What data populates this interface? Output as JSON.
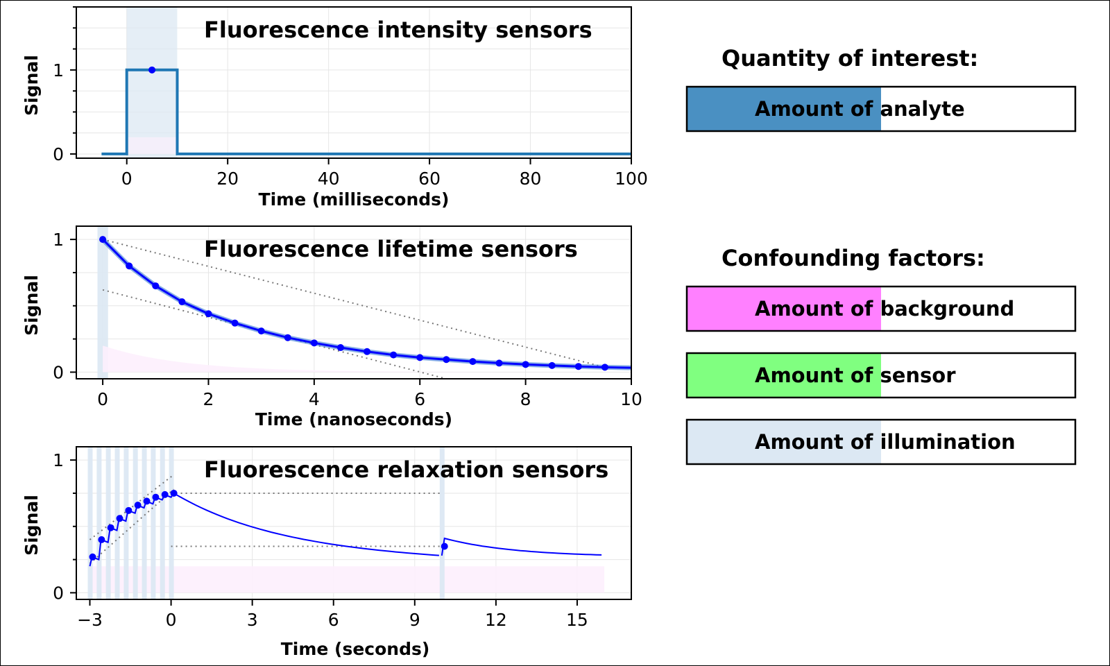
{
  "chart_data": [
    {
      "type": "line",
      "title": "Fluorescence intensity sensors",
      "xlabel": "Time (milliseconds)",
      "ylabel": "Signal",
      "xlim": [
        -10,
        100
      ],
      "ylim": [
        -0.05,
        1.75
      ],
      "xticks": [
        0,
        20,
        40,
        60,
        80,
        100
      ],
      "xtick_labels": [
        "0",
        "20",
        "40",
        "60",
        "80",
        "100"
      ],
      "yticks": [
        0,
        1
      ],
      "ytick_labels": [
        "0",
        "1"
      ],
      "grid": true,
      "illumination_window": [
        0,
        10
      ],
      "series": [
        {
          "x": [
            -5,
            0,
            0,
            10,
            10,
            100
          ],
          "y": [
            0,
            0,
            1,
            1,
            0,
            0
          ],
          "color": "#1f77b4"
        }
      ],
      "points": [
        {
          "x": 5,
          "y": 1
        }
      ]
    },
    {
      "type": "line",
      "title": "Fluorescence lifetime sensors",
      "xlabel": "Time (nanoseconds)",
      "ylabel": "Signal",
      "xlim": [
        -0.5,
        10
      ],
      "ylim": [
        -0.05,
        1.1
      ],
      "xticks": [
        0,
        2,
        4,
        6,
        8,
        10
      ],
      "xtick_labels": [
        "0",
        "2",
        "4",
        "6",
        "8",
        "10"
      ],
      "yticks": [
        0,
        1
      ],
      "ytick_labels": [
        "0",
        "1"
      ],
      "grid": true,
      "illumination_window": [
        -0.1,
        0.1
      ],
      "decay_x": [
        0,
        0.5,
        1,
        1.5,
        2,
        2.5,
        3,
        3.5,
        4,
        4.5,
        5,
        5.5,
        6,
        6.5,
        7,
        7.5,
        8,
        8.5,
        9,
        9.5
      ],
      "decay_y": [
        1.0,
        0.8,
        0.65,
        0.53,
        0.44,
        0.37,
        0.31,
        0.26,
        0.22,
        0.185,
        0.155,
        0.13,
        0.11,
        0.095,
        0.08,
        0.068,
        0.058,
        0.05,
        0.043,
        0.037
      ],
      "tangent_lines": [
        {
          "x": [
            0,
            9.5
          ],
          "y": [
            1.0,
            0.037
          ]
        },
        {
          "x": [
            0,
            6.5
          ],
          "y": [
            0.62,
            -0.05
          ]
        }
      ]
    },
    {
      "type": "line",
      "title": "Fluorescence relaxation sensors",
      "xlabel": "Time (seconds)",
      "ylabel": "Signal",
      "xlim": [
        -3.5,
        17
      ],
      "ylim": [
        -0.05,
        1.1
      ],
      "xticks": [
        -3,
        0,
        3,
        6,
        9,
        12,
        15
      ],
      "xtick_labels": [
        "−3",
        "0",
        "3",
        "6",
        "9",
        "12",
        "15"
      ],
      "yticks": [
        0,
        1
      ],
      "ytick_labels": [
        "0",
        "1"
      ],
      "grid": true,
      "pulse_times": [
        -3,
        -2.67,
        -2.33,
        -2,
        -1.67,
        -1.33,
        -1,
        -0.67,
        -0.33,
        0,
        10
      ],
      "rise_points_x": [
        -3,
        -2.67,
        -2.33,
        -2,
        -1.67,
        -1.33,
        -1,
        -0.67,
        -0.33,
        0
      ],
      "rise_points_y": [
        0.27,
        0.4,
        0.49,
        0.56,
        0.62,
        0.66,
        0.69,
        0.72,
        0.74,
        0.75
      ],
      "second_point": {
        "x": 10.1,
        "y": 0.35
      },
      "decay_end_values": {
        "first_decay_end": [
          10,
          0.28
        ],
        "second_decay_end": [
          16,
          0.27
        ]
      },
      "reference_levels": [
        {
          "x": [
            0,
            10
          ],
          "y": 0.75
        },
        {
          "x": [
            0,
            10
          ],
          "y": 0.35
        }
      ],
      "background_level": 0.2
    }
  ],
  "legend": {
    "quantity_heading": "Quantity of interest:",
    "confounding_heading": "Confounding factors:",
    "items": [
      {
        "label": "Amount of analyte",
        "color": "#4a90c2",
        "fraction": 0.5
      },
      {
        "label": "Amount of background",
        "color": "#ff80ff",
        "fraction": 0.5
      },
      {
        "label": "Amount of sensor",
        "color": "#80ff80",
        "fraction": 0.5
      },
      {
        "label": "Amount of illumination",
        "color": "#dce8f3",
        "fraction": 0.5
      }
    ]
  },
  "colors": {
    "intensity_line": "#1f77b4",
    "decay_line": "#0000ff",
    "illumination": "#dce8f3",
    "background": "#fdf0fd",
    "guide": "#777777"
  }
}
